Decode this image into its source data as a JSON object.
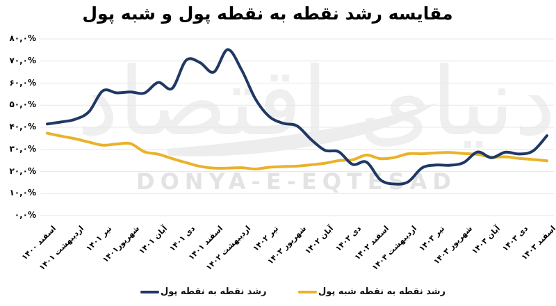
{
  "title": "مقایسه رشد نقطه به نقطه پول و شبه پول",
  "watermark": {
    "persian": "دنیای اقتصاد",
    "latin": "DONYA-E-EQTESAD"
  },
  "legend": [
    {
      "label": "رشد نقطه به نقطه پول",
      "color": "#1f3864"
    },
    {
      "label": "رشد نقطه به نقطه شبه پول",
      "color": "#eab22a"
    }
  ],
  "chart_data": {
    "type": "line",
    "title": "مقایسه رشد نقطه به نقطه پول و شبه پول",
    "ylim": [
      0,
      80
    ],
    "ytick_step": 10,
    "ytick_labels_top_to_bottom": [
      "۸۰,۰%",
      "۷۰,۰%",
      "۶۰,۰%",
      "۵۰,۰%",
      "۴۰,۰%",
      "۳۰,۰%",
      "۲۰,۰%",
      "۱۰,۰%",
      "۰,۰%"
    ],
    "xtick_labels": [
      "اسفند ۱۴۰۰",
      "اردیبهشت ۱۴۰۱",
      "تیر ۱۴۰۱",
      "شهریور۱۴۰۱",
      "آبان ۱۴۰۱",
      "دی ۱۴۰۱",
      "اسفند ۱۴۰۱",
      "اردیبهشت ۱۴۰۲",
      "تیر ۱۴۰۲",
      "شهریور ۱۴۰۲",
      "آبان ۱۴۰۲",
      "دی ۱۴۰۲",
      "اسفند ۱۴۰۲",
      "اردیبهشت ۱۴۰۳",
      "تیر ۱۴۰۳",
      "شهریور ۱۴۰۳",
      "آبان ۱۴۰۳",
      "دی ۱۴۰۳",
      "اسفند ۱۴۰۳"
    ],
    "xtick_every_n_points": 2,
    "grid": true,
    "legend_position": "bottom",
    "series": [
      {
        "name": "رشد نقطه به نقطه پول",
        "color": "#1f3864",
        "values": [
          41.5,
          42.4,
          43.6,
          47.0,
          56.5,
          55.6,
          56.0,
          55.5,
          60.3,
          57.6,
          70.3,
          69.3,
          65.0,
          75.2,
          66.0,
          52.8,
          44.8,
          41.8,
          40.6,
          34.5,
          29.6,
          28.9,
          23.2,
          24.2,
          16.2,
          14.3,
          15.3,
          21.6,
          22.9,
          22.8,
          24.0,
          28.8,
          26.2,
          28.7,
          27.9,
          29.3,
          36.2
        ]
      },
      {
        "name": "رشد نقطه به نقطه شبه پول",
        "color": "#eab22a",
        "values": [
          37.3,
          36.0,
          34.8,
          33.3,
          31.9,
          32.4,
          32.6,
          28.9,
          27.8,
          25.8,
          24.0,
          22.3,
          21.5,
          21.5,
          21.7,
          21.1,
          21.9,
          22.2,
          22.4,
          23.0,
          23.7,
          24.9,
          25.3,
          27.4,
          25.8,
          26.3,
          28.0,
          28.0,
          28.4,
          28.6,
          28.1,
          27.7,
          26.5,
          26.6,
          25.9,
          25.4,
          24.8
        ]
      }
    ]
  }
}
